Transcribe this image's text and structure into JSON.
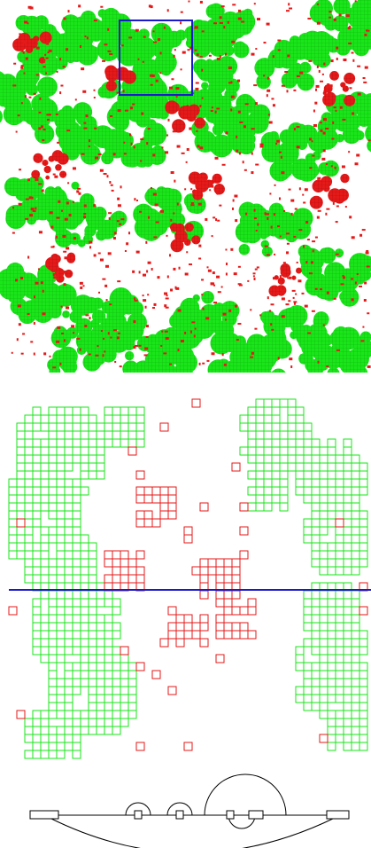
{
  "colors": {
    "background": "#ffffff",
    "cluster_green": "#19e619",
    "cluster_red": "#e61919",
    "highlight_blue": "#1a1acc",
    "arc_line": "#000000"
  },
  "overview": {
    "grid_cells": 128,
    "green_fraction_estimate": 0.5,
    "red_fraction_estimate": 0.08,
    "has_zoom_rectangle": true
  },
  "zoom": {
    "grid_cells": 30,
    "has_crossing_line": true
  },
  "arc_diagram": {
    "node_count": 7,
    "upper_arcs": 4,
    "lower_arcs": 2
  }
}
